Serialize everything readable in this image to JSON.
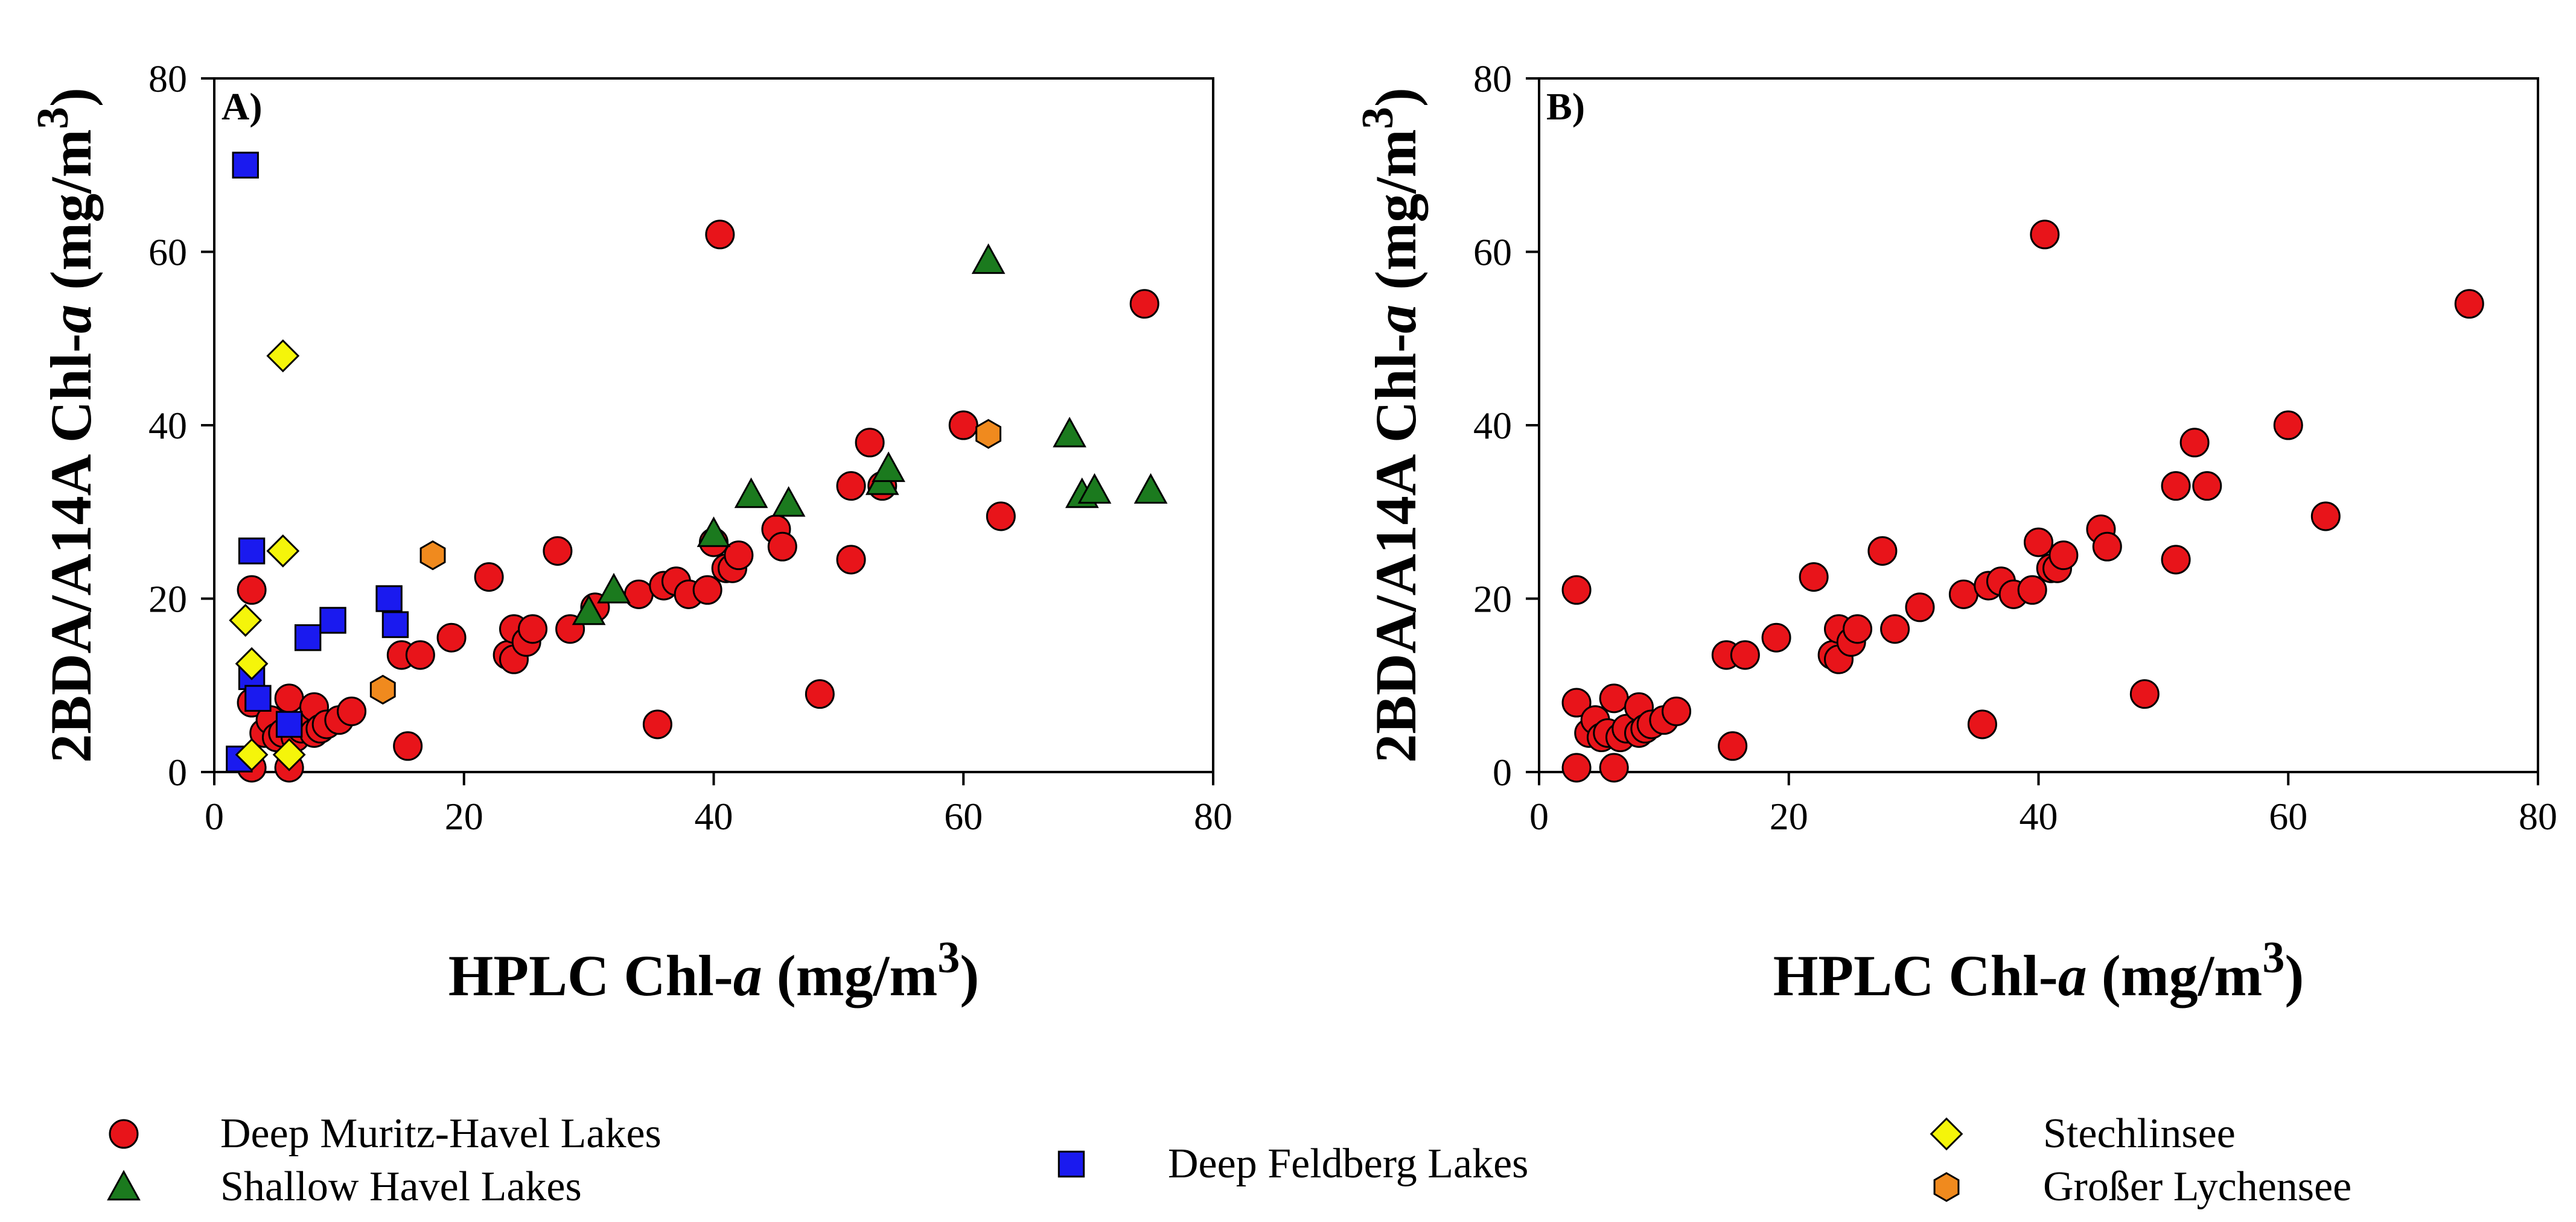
{
  "chart_data": [
    {
      "type": "scatter",
      "panel_label": "A)",
      "xlabel_parts": [
        "HPLC Chl-",
        "a",
        " (mg/m",
        "3",
        ")"
      ],
      "ylabel_parts": [
        "2BDA/A14A Chl-",
        "a",
        " (mg/m",
        "3",
        ")"
      ],
      "xlim": [
        0,
        80
      ],
      "ylim": [
        0,
        80
      ],
      "xticks": [
        0,
        20,
        40,
        60,
        80
      ],
      "yticks": [
        0,
        20,
        40,
        60,
        80
      ],
      "series": [
        {
          "name": "Deep Muritz-Havel Lakes",
          "marker": "circle",
          "color": "#e8141a",
          "points": [
            [
              3,
              21
            ],
            [
              3,
              8
            ],
            [
              3,
              0.5
            ],
            [
              4,
              4.5
            ],
            [
              4.5,
              6
            ],
            [
              5,
              4
            ],
            [
              5.5,
              4.5
            ],
            [
              6,
              8.5
            ],
            [
              6,
              0.5
            ],
            [
              6.5,
              4
            ],
            [
              7,
              5
            ],
            [
              8,
              7.5
            ],
            [
              8,
              4.5
            ],
            [
              8.5,
              5
            ],
            [
              9,
              5.5
            ],
            [
              10,
              6
            ],
            [
              11,
              7
            ],
            [
              15,
              13.5
            ],
            [
              15.5,
              3
            ],
            [
              16.5,
              13.5
            ],
            [
              19,
              15.5
            ],
            [
              22,
              22.5
            ],
            [
              23.5,
              13.5
            ],
            [
              24,
              16.5
            ],
            [
              24,
              13
            ],
            [
              25,
              15
            ],
            [
              25.5,
              16.5
            ],
            [
              27.5,
              25.5
            ],
            [
              28.5,
              16.5
            ],
            [
              30.5,
              19
            ],
            [
              34,
              20.5
            ],
            [
              35.5,
              5.5
            ],
            [
              36,
              21.5
            ],
            [
              37,
              22
            ],
            [
              38,
              20.5
            ],
            [
              39.5,
              21
            ],
            [
              40,
              26.5
            ],
            [
              40.5,
              62
            ],
            [
              41,
              23.5
            ],
            [
              41.5,
              23.5
            ],
            [
              42,
              25
            ],
            [
              45,
              28
            ],
            [
              45.5,
              26
            ],
            [
              48.5,
              9
            ],
            [
              51,
              24.5
            ],
            [
              51,
              33
            ],
            [
              52.5,
              38
            ],
            [
              53.5,
              33
            ],
            [
              60,
              40
            ],
            [
              63,
              29.5
            ],
            [
              74.5,
              54
            ]
          ]
        },
        {
          "name": "Shallow Havel Lakes",
          "marker": "triangle",
          "color": "#1b7a1e",
          "points": [
            [
              30,
              18.5
            ],
            [
              32,
              21
            ],
            [
              40,
              27.5
            ],
            [
              43,
              32
            ],
            [
              46,
              31
            ],
            [
              53.5,
              33.5
            ],
            [
              54,
              35
            ],
            [
              62,
              59
            ],
            [
              68.5,
              39
            ],
            [
              69.5,
              32
            ],
            [
              70.5,
              32.5
            ],
            [
              75,
              32.5
            ]
          ]
        },
        {
          "name": "Deep Feldberg Lakes",
          "marker": "square",
          "color": "#1a1aef",
          "points": [
            [
              2.5,
              70
            ],
            [
              3,
              25.5
            ],
            [
              3,
              11
            ],
            [
              3.5,
              8.5
            ],
            [
              2,
              1.5
            ],
            [
              6,
              5.5
            ],
            [
              7.5,
              15.5
            ],
            [
              9.5,
              17.5
            ],
            [
              14,
              20
            ],
            [
              14.5,
              17
            ]
          ]
        },
        {
          "name": "Stechlinsee",
          "marker": "diamond",
          "color": "#f5f50a",
          "points": [
            [
              2.5,
              17.5
            ],
            [
              3,
              12.5
            ],
            [
              5.5,
              48
            ],
            [
              5.5,
              25.5
            ],
            [
              3,
              2
            ],
            [
              6,
              2
            ]
          ]
        },
        {
          "name": "Großer Lychensee",
          "marker": "hexagon",
          "color": "#f08a1e",
          "points": [
            [
              13.5,
              9.5
            ],
            [
              17.5,
              25
            ],
            [
              62,
              39
            ]
          ]
        }
      ]
    },
    {
      "type": "scatter",
      "panel_label": "B)",
      "xlabel_parts": [
        "HPLC Chl-",
        "a",
        " (mg/m",
        "3",
        ")"
      ],
      "ylabel_parts": [
        "2BDA/A14A Chl-",
        "a",
        " (mg/m",
        "3",
        ")"
      ],
      "xlim": [
        0,
        80
      ],
      "ylim": [
        0,
        80
      ],
      "xticks": [
        0,
        20,
        40,
        60,
        80
      ],
      "yticks": [
        0,
        20,
        40,
        60,
        80
      ],
      "series": [
        {
          "name": "Deep Muritz-Havel Lakes",
          "marker": "circle",
          "color": "#e8141a",
          "points": [
            [
              3,
              21
            ],
            [
              3,
              8
            ],
            [
              3,
              0.5
            ],
            [
              4,
              4.5
            ],
            [
              4.5,
              6
            ],
            [
              5,
              4
            ],
            [
              5.5,
              4.5
            ],
            [
              6,
              8.5
            ],
            [
              6,
              0.5
            ],
            [
              6.5,
              4
            ],
            [
              7,
              5
            ],
            [
              8,
              7.5
            ],
            [
              8,
              4.5
            ],
            [
              8.5,
              5
            ],
            [
              9,
              5.5
            ],
            [
              10,
              6
            ],
            [
              11,
              7
            ],
            [
              15,
              13.5
            ],
            [
              15.5,
              3
            ],
            [
              16.5,
              13.5
            ],
            [
              19,
              15.5
            ],
            [
              22,
              22.5
            ],
            [
              23.5,
              13.5
            ],
            [
              24,
              16.5
            ],
            [
              24,
              13
            ],
            [
              25,
              15
            ],
            [
              25.5,
              16.5
            ],
            [
              27.5,
              25.5
            ],
            [
              28.5,
              16.5
            ],
            [
              30.5,
              19
            ],
            [
              34,
              20.5
            ],
            [
              35.5,
              5.5
            ],
            [
              36,
              21.5
            ],
            [
              37,
              22
            ],
            [
              38,
              20.5
            ],
            [
              39.5,
              21
            ],
            [
              40,
              26.5
            ],
            [
              40.5,
              62
            ],
            [
              41,
              23.5
            ],
            [
              41.5,
              23.5
            ],
            [
              42,
              25
            ],
            [
              45,
              28
            ],
            [
              45.5,
              26
            ],
            [
              48.5,
              9
            ],
            [
              51,
              24.5
            ],
            [
              51,
              33
            ],
            [
              52.5,
              38
            ],
            [
              53.5,
              33
            ],
            [
              60,
              40
            ],
            [
              63,
              29.5
            ],
            [
              74.5,
              54
            ]
          ]
        }
      ]
    }
  ],
  "legend": [
    {
      "label": "Deep Muritz-Havel Lakes",
      "marker": "circle",
      "color": "#e8141a"
    },
    {
      "label": "Shallow Havel Lakes",
      "marker": "triangle",
      "color": "#1b7a1e"
    },
    {
      "label": "Deep Feldberg Lakes",
      "marker": "square",
      "color": "#1a1aef"
    },
    {
      "label": "Stechlinsee",
      "marker": "diamond",
      "color": "#f5f50a"
    },
    {
      "label": "Großer Lychensee",
      "marker": "hexagon",
      "color": "#f08a1e"
    }
  ]
}
